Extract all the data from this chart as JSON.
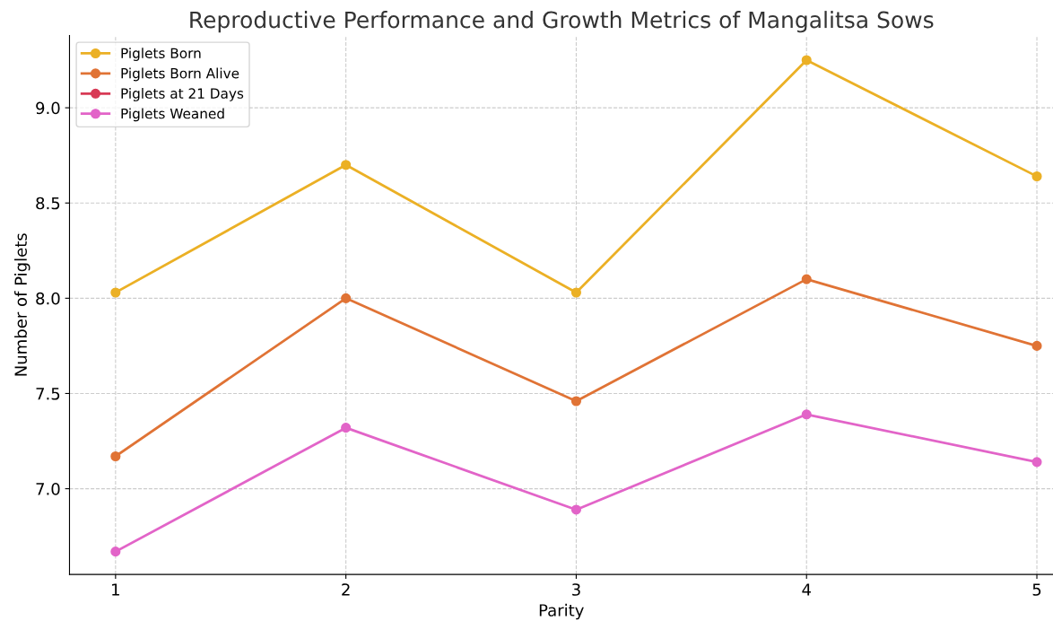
{
  "chart_data": {
    "type": "line",
    "title": "Reproductive Performance and Growth Metrics of Mangalitsa Sows",
    "xlabel": "Parity",
    "ylabel": "Number of Piglets",
    "x": [
      1,
      2,
      3,
      4,
      5
    ],
    "series": [
      {
        "name": "Piglets Born",
        "color": "#ebb025",
        "values": [
          8.03,
          8.7,
          8.03,
          9.25,
          8.64
        ]
      },
      {
        "name": "Piglets Born Alive",
        "color": "#e07335",
        "values": [
          7.17,
          8.0,
          7.46,
          8.1,
          7.75
        ]
      },
      {
        "name": "Piglets at 21 Days",
        "color": "#d83a55",
        "values": [
          null,
          null,
          null,
          null,
          null
        ]
      },
      {
        "name": "Piglets Weaned",
        "color": "#e264c8",
        "values": [
          6.67,
          7.32,
          6.89,
          7.39,
          7.14
        ]
      }
    ],
    "xlim": [
      0.8,
      5.07
    ],
    "ylim": [
      6.55,
      9.38
    ],
    "xticks": [
      1,
      2,
      3,
      4,
      5
    ],
    "yticks": [
      {
        "value": 7.0,
        "label": "7.0"
      },
      {
        "value": 7.5,
        "label": "7.5"
      },
      {
        "value": 8.0,
        "label": "8.0"
      },
      {
        "value": 8.5,
        "label": "8.5"
      },
      {
        "value": 9.0,
        "label": "9.0"
      }
    ],
    "grid": true,
    "legend": "top left",
    "marker": "circle",
    "line_style": "solid"
  }
}
